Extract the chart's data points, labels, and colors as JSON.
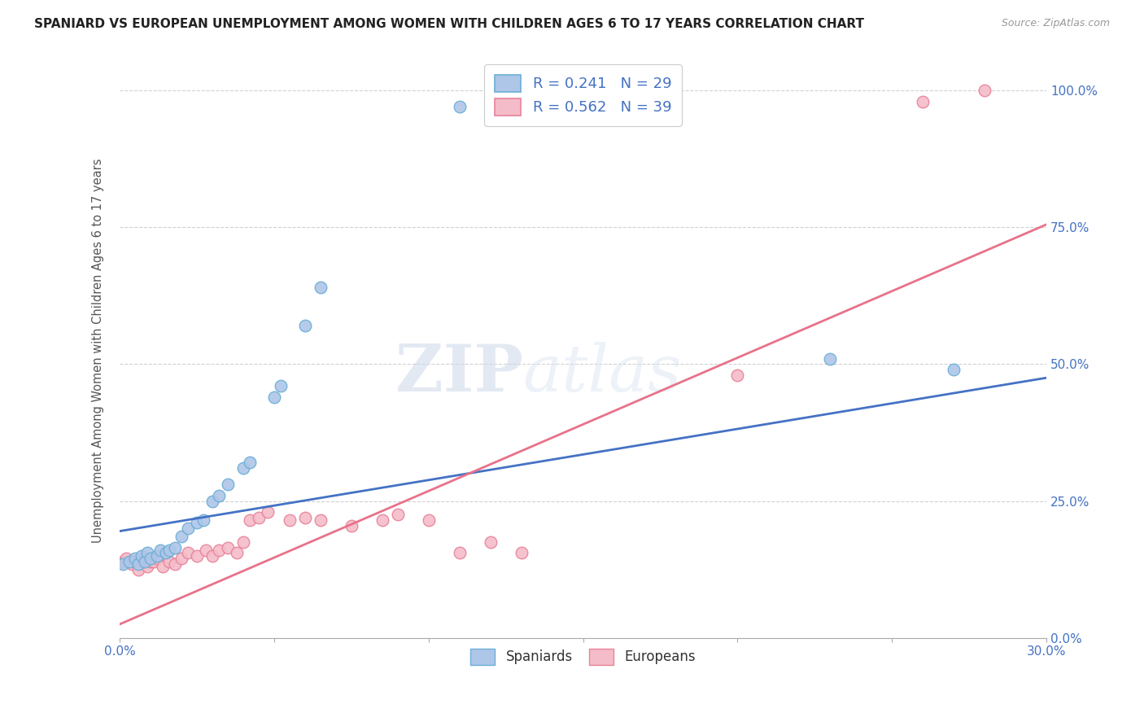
{
  "title": "SPANIARD VS EUROPEAN UNEMPLOYMENT AMONG WOMEN WITH CHILDREN AGES 6 TO 17 YEARS CORRELATION CHART",
  "source": "Source: ZipAtlas.com",
  "ylabel": "Unemployment Among Women with Children Ages 6 to 17 years",
  "xmin": 0.0,
  "xmax": 0.3,
  "ymin": 0.0,
  "ymax": 1.05,
  "xticks": [
    0.0,
    0.05,
    0.1,
    0.15,
    0.2,
    0.25,
    0.3
  ],
  "ytick_labels_right": [
    "0.0%",
    "25.0%",
    "50.0%",
    "75.0%",
    "100.0%"
  ],
  "ytick_vals": [
    0.0,
    0.25,
    0.5,
    0.75,
    1.0
  ],
  "legend_r1": "R = 0.241   N = 29",
  "legend_r2": "R = 0.562   N = 39",
  "spaniards_color": "#6baed6",
  "spaniards_fill": "#aec6e8",
  "europeans_color": "#e8829a",
  "europeans_fill": "#f4bcc8",
  "line_blue": "#4472c4",
  "line_pink": "#e8728a",
  "watermark_zip": "ZIP",
  "watermark_atlas": "atlas",
  "spaniards_x": [
    0.001,
    0.003,
    0.005,
    0.006,
    0.007,
    0.008,
    0.009,
    0.01,
    0.012,
    0.013,
    0.015,
    0.016,
    0.018,
    0.02,
    0.022,
    0.025,
    0.027,
    0.03,
    0.032,
    0.035,
    0.04,
    0.042,
    0.05,
    0.052,
    0.06,
    0.065,
    0.11,
    0.23,
    0.27
  ],
  "spaniards_y": [
    0.135,
    0.14,
    0.145,
    0.135,
    0.15,
    0.14,
    0.155,
    0.145,
    0.15,
    0.16,
    0.155,
    0.16,
    0.165,
    0.185,
    0.2,
    0.21,
    0.215,
    0.25,
    0.26,
    0.28,
    0.31,
    0.32,
    0.44,
    0.46,
    0.57,
    0.64,
    0.97,
    0.51,
    0.49
  ],
  "europeans_x": [
    0.001,
    0.002,
    0.004,
    0.005,
    0.006,
    0.007,
    0.008,
    0.009,
    0.01,
    0.011,
    0.012,
    0.014,
    0.016,
    0.018,
    0.02,
    0.022,
    0.025,
    0.028,
    0.03,
    0.032,
    0.035,
    0.038,
    0.04,
    0.042,
    0.045,
    0.048,
    0.055,
    0.06,
    0.065,
    0.075,
    0.085,
    0.09,
    0.1,
    0.11,
    0.12,
    0.13,
    0.2,
    0.26,
    0.28
  ],
  "europeans_y": [
    0.14,
    0.145,
    0.135,
    0.14,
    0.125,
    0.14,
    0.145,
    0.13,
    0.14,
    0.14,
    0.145,
    0.13,
    0.14,
    0.135,
    0.145,
    0.155,
    0.15,
    0.16,
    0.15,
    0.16,
    0.165,
    0.155,
    0.175,
    0.215,
    0.22,
    0.23,
    0.215,
    0.22,
    0.215,
    0.205,
    0.215,
    0.225,
    0.215,
    0.155,
    0.175,
    0.155,
    0.48,
    0.98,
    1.0
  ],
  "blue_line_x": [
    0.0,
    0.3
  ],
  "blue_line_y": [
    0.195,
    0.475
  ],
  "pink_line_x": [
    0.0,
    0.3
  ],
  "pink_line_y": [
    0.025,
    0.755
  ],
  "background_color": "#ffffff",
  "grid_color": "#cccccc"
}
